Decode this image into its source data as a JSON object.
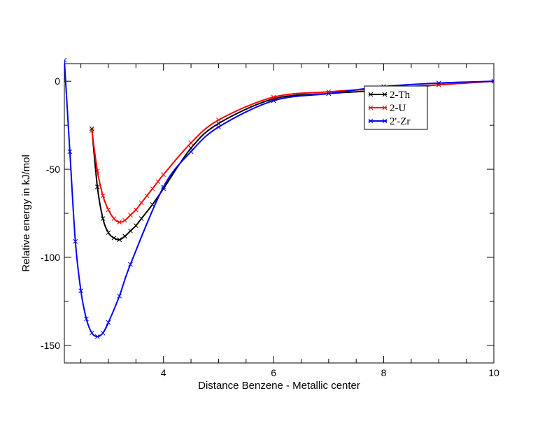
{
  "chart_data": {
    "type": "line",
    "xlabel": "Distance Benzene - Metallic center",
    "ylabel": "Relative energy in kJ/mol",
    "xlim": [
      2.2,
      10
    ],
    "ylim": [
      -160,
      10
    ],
    "x_ticks": [
      4,
      6,
      8,
      10
    ],
    "y_ticks": [
      0,
      -50,
      -100,
      -150
    ],
    "x_minor_step": 0.5,
    "y_minor_step": 25,
    "grid": false,
    "legend_position": "top-right",
    "series": [
      {
        "name": "2-Th",
        "color": "#000000",
        "x": [
          2.7,
          2.8,
          2.9,
          3.0,
          3.1,
          3.2,
          3.3,
          3.4,
          3.5,
          3.6,
          3.8,
          4.0,
          4.5,
          5.0,
          6.0,
          7.0,
          8.0,
          9.0,
          10.0
        ],
        "y": [
          -27,
          -60,
          -78,
          -86,
          -89,
          -90,
          -88,
          -85,
          -82,
          -78,
          -70,
          -61,
          -38,
          -24,
          -10,
          -7,
          -5,
          -2,
          0
        ]
      },
      {
        "name": "2-U",
        "color": "#ff0000",
        "x": [
          2.7,
          2.8,
          2.9,
          3.0,
          3.1,
          3.2,
          3.3,
          3.4,
          3.5,
          3.6,
          3.7,
          3.8,
          3.9,
          4.0,
          4.5,
          5.0,
          6.0,
          7.0,
          8.0,
          9.0,
          10.0
        ],
        "y": [
          -28,
          -51,
          -65,
          -73,
          -78,
          -80,
          -79,
          -76,
          -73,
          -69,
          -65,
          -61,
          -57,
          -53,
          -35,
          -22,
          -9,
          -6,
          -4,
          -2,
          0
        ]
      },
      {
        "name": "2'-Zr",
        "color": "#0000ff",
        "x": [
          2.2,
          2.3,
          2.4,
          2.5,
          2.6,
          2.7,
          2.8,
          2.9,
          3.0,
          3.2,
          3.4,
          4.0,
          4.5,
          5.0,
          6.0,
          7.0,
          8.0,
          9.0,
          10.0
        ],
        "y": [
          12,
          -40,
          -91,
          -119,
          -135,
          -143,
          -145,
          -143,
          -137,
          -122,
          -104,
          -60,
          -40,
          -26,
          -11,
          -7,
          -3,
          -1,
          0
        ]
      }
    ]
  }
}
